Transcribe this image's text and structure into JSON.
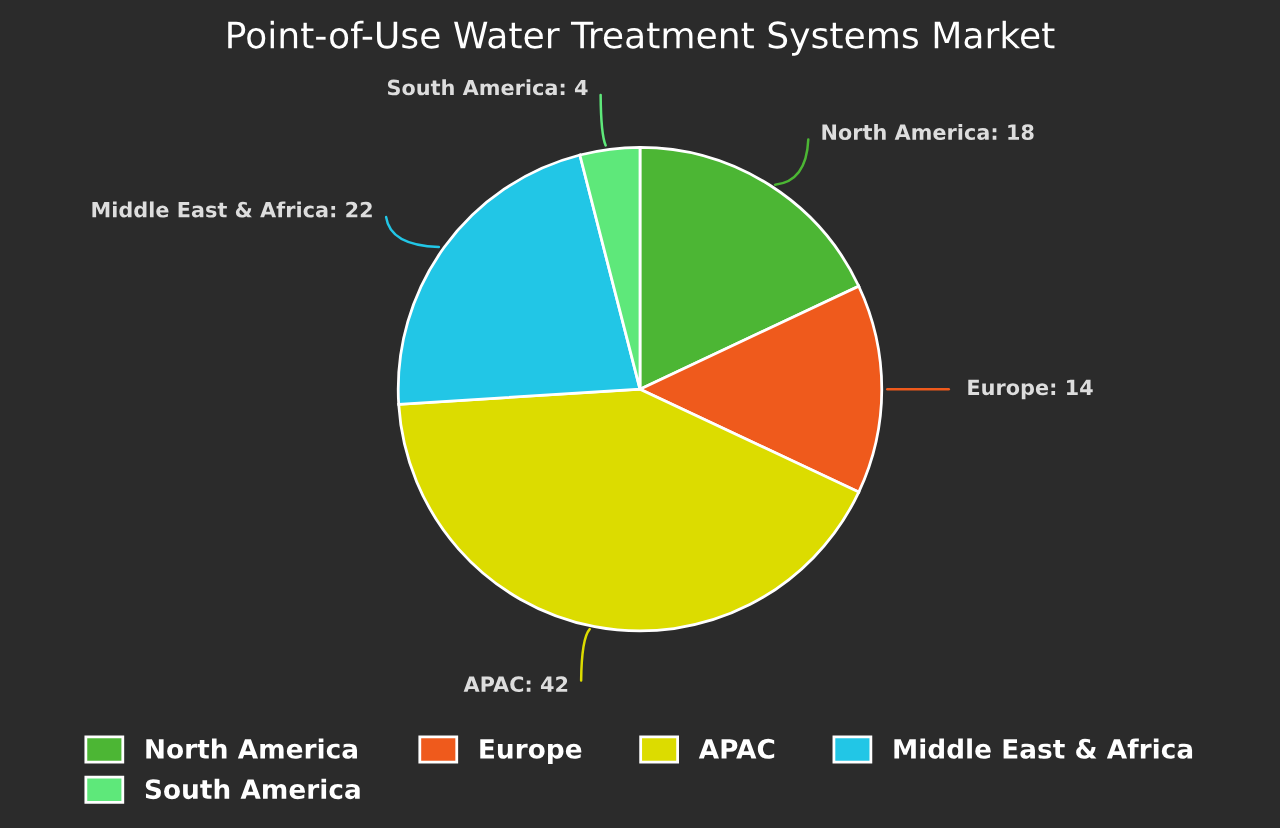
{
  "chart_data": {
    "type": "pie",
    "title": "Point-of-Use Water Treatment Systems Market",
    "categories": [
      "North America",
      "Europe",
      "APAC",
      "Middle East & Africa",
      "South America"
    ],
    "values": [
      18,
      14,
      42,
      22,
      4
    ],
    "colors": [
      "#4cb634",
      "#ef5a1c",
      "#dcdc00",
      "#22c6e6",
      "#5ee87a"
    ],
    "value_labels": [
      "North America: 18",
      "Europe: 14",
      "APAC: 42",
      "Middle East & Africa: 22",
      "South America: 4"
    ],
    "legend": "bottom"
  }
}
